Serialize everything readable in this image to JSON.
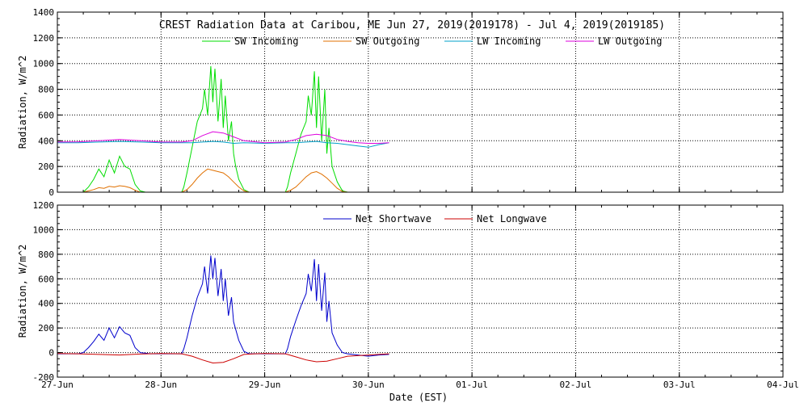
{
  "chart_data": [
    {
      "type": "line",
      "title": "CREST Radiation Data at Caribou, ME   Jun 27, 2019(2019178) - Jul  4, 2019(2019185)",
      "xlabel": "",
      "ylabel": "Radiation, W/m^2",
      "xlim": [
        0,
        7
      ],
      "ylim": [
        0,
        1400
      ],
      "yticks": [
        0,
        200,
        400,
        600,
        800,
        1000,
        1200,
        1400
      ],
      "grid": true,
      "legend_position": "top",
      "series": [
        {
          "name": "SW Incoming",
          "color": "#00dd00",
          "x": [
            0.25,
            0.3,
            0.35,
            0.4,
            0.45,
            0.5,
            0.55,
            0.6,
            0.65,
            0.7,
            0.75,
            0.8,
            0.85,
            1.0,
            1.2,
            1.22,
            1.25,
            1.3,
            1.35,
            1.4,
            1.42,
            1.45,
            1.48,
            1.5,
            1.52,
            1.55,
            1.58,
            1.6,
            1.62,
            1.65,
            1.68,
            1.7,
            1.72,
            1.75,
            1.8,
            1.85,
            2.0,
            2.2,
            2.22,
            2.25,
            2.3,
            2.35,
            2.4,
            2.42,
            2.45,
            2.48,
            2.5,
            2.52,
            2.55,
            2.58,
            2.6,
            2.62,
            2.65,
            2.7,
            2.75,
            2.8,
            2.85,
            3.0
          ],
          "values": [
            0,
            40,
            100,
            180,
            120,
            250,
            150,
            280,
            200,
            180,
            60,
            10,
            0,
            0,
            0,
            40,
            150,
            350,
            550,
            650,
            800,
            600,
            980,
            700,
            960,
            550,
            880,
            500,
            750,
            400,
            550,
            300,
            200,
            100,
            20,
            0,
            0,
            0,
            40,
            150,
            300,
            450,
            550,
            750,
            600,
            940,
            500,
            900,
            400,
            800,
            300,
            500,
            200,
            80,
            10,
            0,
            0,
            0
          ]
        },
        {
          "name": "SW Outgoing",
          "color": "#e07000",
          "x": [
            0.25,
            0.3,
            0.35,
            0.4,
            0.45,
            0.5,
            0.55,
            0.6,
            0.65,
            0.7,
            0.75,
            0.8,
            0.85,
            1.0,
            1.2,
            1.25,
            1.3,
            1.35,
            1.4,
            1.45,
            1.5,
            1.55,
            1.6,
            1.65,
            1.7,
            1.75,
            1.8,
            1.85,
            2.0,
            2.2,
            2.25,
            2.3,
            2.35,
            2.4,
            2.45,
            2.5,
            2.55,
            2.6,
            2.65,
            2.7,
            2.75,
            2.8,
            3.0
          ],
          "values": [
            0,
            10,
            20,
            35,
            30,
            45,
            40,
            50,
            45,
            35,
            15,
            0,
            0,
            0,
            0,
            20,
            60,
            110,
            150,
            180,
            170,
            160,
            150,
            120,
            80,
            40,
            10,
            0,
            0,
            0,
            15,
            40,
            80,
            120,
            150,
            160,
            140,
            110,
            70,
            30,
            5,
            0,
            0
          ]
        },
        {
          "name": "LW Incoming",
          "color": "#00a0c8",
          "x": [
            0,
            0.2,
            0.4,
            0.6,
            0.8,
            1.0,
            1.2,
            1.3,
            1.4,
            1.5,
            1.6,
            1.7,
            1.8,
            2.0,
            2.2,
            2.3,
            2.4,
            2.5,
            2.6,
            2.7,
            2.8,
            2.9,
            3.0,
            3.1,
            3.2
          ],
          "values": [
            385,
            385,
            390,
            395,
            390,
            385,
            385,
            385,
            390,
            395,
            390,
            380,
            385,
            380,
            385,
            385,
            390,
            395,
            385,
            380,
            370,
            360,
            350,
            370,
            385
          ]
        },
        {
          "name": "LW Outgoing",
          "color": "#dd00dd",
          "x": [
            0,
            0.2,
            0.4,
            0.6,
            0.8,
            1.0,
            1.2,
            1.3,
            1.4,
            1.5,
            1.6,
            1.7,
            1.8,
            2.0,
            2.2,
            2.3,
            2.4,
            2.5,
            2.6,
            2.7,
            2.8,
            2.9,
            3.0,
            3.1,
            3.2
          ],
          "values": [
            390,
            392,
            400,
            410,
            400,
            390,
            390,
            400,
            440,
            470,
            460,
            430,
            400,
            385,
            390,
            410,
            440,
            450,
            440,
            410,
            395,
            385,
            380,
            380,
            385
          ]
        }
      ]
    },
    {
      "type": "line",
      "title": "",
      "xlabel": "Date (EST)",
      "ylabel": "Radiation, W/m^2",
      "xlim": [
        0,
        7
      ],
      "ylim": [
        -200,
        1200
      ],
      "yticks": [
        -200,
        0,
        200,
        400,
        600,
        800,
        1000,
        1200
      ],
      "xticks": [
        "27-Jun",
        "28-Jun",
        "29-Jun",
        "30-Jun",
        "01-Jul",
        "02-Jul",
        "03-Jul",
        "04-Jul"
      ],
      "grid": true,
      "legend_position": "top",
      "series": [
        {
          "name": "Net Shortwave",
          "color": "#0000cc",
          "x": [
            0,
            0.2,
            0.25,
            0.3,
            0.35,
            0.4,
            0.45,
            0.5,
            0.55,
            0.6,
            0.65,
            0.7,
            0.75,
            0.8,
            0.9,
            1.0,
            1.2,
            1.22,
            1.25,
            1.3,
            1.35,
            1.4,
            1.42,
            1.45,
            1.48,
            1.5,
            1.52,
            1.55,
            1.58,
            1.6,
            1.62,
            1.65,
            1.68,
            1.7,
            1.75,
            1.8,
            1.85,
            2.0,
            2.2,
            2.22,
            2.25,
            2.3,
            2.35,
            2.4,
            2.42,
            2.45,
            2.48,
            2.5,
            2.52,
            2.55,
            2.58,
            2.6,
            2.62,
            2.65,
            2.7,
            2.75,
            2.8,
            2.9,
            3.0,
            3.1,
            3.2
          ],
          "values": [
            -10,
            -10,
            0,
            40,
            90,
            150,
            100,
            200,
            120,
            210,
            160,
            140,
            40,
            0,
            -10,
            -10,
            -10,
            30,
            120,
            300,
            450,
            560,
            700,
            480,
            790,
            600,
            770,
            460,
            680,
            420,
            600,
            300,
            450,
            250,
            100,
            10,
            -10,
            -10,
            -10,
            30,
            130,
            260,
            380,
            480,
            640,
            500,
            760,
            420,
            720,
            340,
            650,
            250,
            420,
            160,
            60,
            0,
            -10,
            -20,
            -30,
            -20,
            -15
          ]
        },
        {
          "name": "Net Longwave",
          "color": "#cc0000",
          "x": [
            0,
            0.2,
            0.4,
            0.6,
            0.8,
            1.0,
            1.2,
            1.3,
            1.4,
            1.5,
            1.6,
            1.7,
            1.8,
            1.9,
            2.0,
            2.2,
            2.3,
            2.4,
            2.5,
            2.6,
            2.7,
            2.8,
            2.9,
            3.0,
            3.1,
            3.2
          ],
          "values": [
            -8,
            -10,
            -15,
            -20,
            -12,
            -8,
            -10,
            -30,
            -60,
            -85,
            -80,
            -50,
            -15,
            -10,
            -8,
            -10,
            -35,
            -60,
            -75,
            -70,
            -50,
            -30,
            -25,
            -20,
            -15,
            -10
          ]
        }
      ]
    }
  ]
}
